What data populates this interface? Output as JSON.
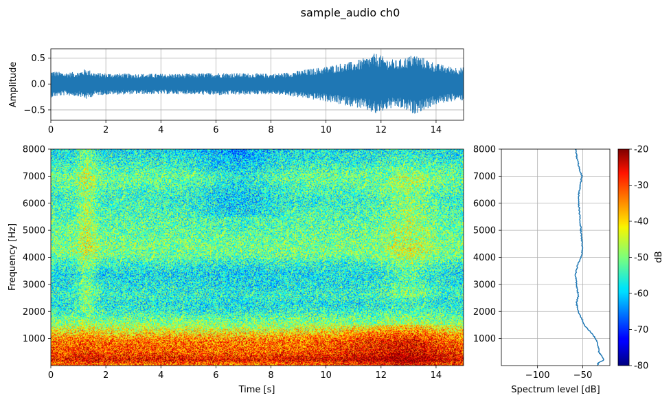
{
  "chart_data": [
    {
      "type": "line",
      "title": "sample_audio ch0",
      "panel": "waveform",
      "xlabel": "",
      "ylabel": "Amplitude",
      "xlim": [
        0,
        15
      ],
      "ylim": [
        -0.7,
        0.68
      ],
      "xticks": [
        0,
        2,
        4,
        6,
        8,
        10,
        12,
        14
      ],
      "yticks": [
        0.5,
        0.0,
        -0.5
      ],
      "ytick_labels": [
        "0.5",
        "0.0",
        "−0.5"
      ],
      "grid": true,
      "color": "#1f77b4",
      "envelope": {
        "t": [
          0,
          0.5,
          1.0,
          1.3,
          1.6,
          2,
          3,
          4,
          5,
          6,
          7,
          8,
          8.5,
          9,
          9.5,
          10,
          10.5,
          11,
          11.5,
          11.8,
          12.2,
          12.6,
          13,
          13.2,
          13.6,
          14,
          14.5,
          15
        ],
        "amplitude": [
          0.26,
          0.22,
          0.24,
          0.3,
          0.22,
          0.21,
          0.2,
          0.2,
          0.2,
          0.22,
          0.21,
          0.2,
          0.22,
          0.26,
          0.3,
          0.34,
          0.4,
          0.44,
          0.52,
          0.6,
          0.5,
          0.46,
          0.54,
          0.58,
          0.5,
          0.4,
          0.34,
          0.32
        ]
      }
    },
    {
      "type": "heatmap",
      "panel": "spectrogram",
      "xlabel": "Time [s]",
      "ylabel": "Frequency [Hz]",
      "xlim": [
        0,
        15
      ],
      "ylim": [
        0,
        8000
      ],
      "xticks": [
        0,
        2,
        4,
        6,
        8,
        10,
        12,
        14
      ],
      "yticks": [
        1000,
        2000,
        3000,
        4000,
        5000,
        6000,
        7000,
        8000
      ],
      "colormap": "jet",
      "clim": [
        -80,
        -20
      ],
      "units": "dB"
    },
    {
      "type": "line",
      "panel": "spectrum",
      "xlabel": "Spectrum level [dB]",
      "ylabel": "",
      "xlim": [
        -140,
        -20
      ],
      "ylim": [
        0,
        8000
      ],
      "xticks": [
        -100,
        -50
      ],
      "xtick_labels": [
        "−100",
        "−50"
      ],
      "yticks": [
        1000,
        2000,
        3000,
        4000,
        5000,
        6000,
        7000,
        8000
      ],
      "grid": true,
      "color": "#1f77b4",
      "frequency": [
        0,
        100,
        200,
        300,
        500,
        700,
        900,
        1100,
        1300,
        1500,
        1800,
        2000,
        2300,
        2600,
        3000,
        3400,
        3800,
        4000,
        4300,
        4600,
        5000,
        5400,
        5800,
        6200,
        6600,
        7000,
        7200,
        7600,
        8000
      ],
      "level": [
        -33,
        -33,
        -27,
        -28,
        -32,
        -33,
        -34,
        -38,
        -43,
        -48,
        -52,
        -55,
        -57,
        -55,
        -57,
        -58,
        -55,
        -52,
        -50,
        -51,
        -52,
        -53,
        -54,
        -55,
        -53,
        -51,
        -53,
        -56,
        -58
      ]
    },
    {
      "type": "colorbar",
      "panel": "colorbar",
      "label": "dB",
      "ticks": [
        -20,
        -30,
        -40,
        -50,
        -60,
        -70,
        -80
      ],
      "tick_labels": [
        "-20",
        "-30",
        "-40",
        "-50",
        "-60",
        "-70",
        "-80"
      ],
      "colormap": "jet"
    }
  ]
}
